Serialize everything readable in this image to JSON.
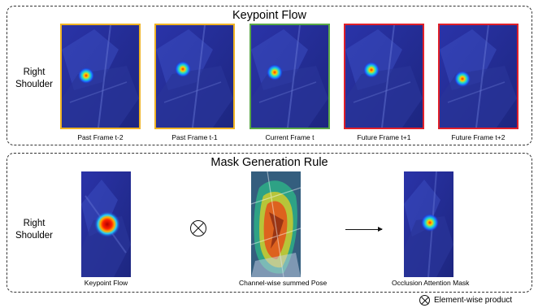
{
  "keypoint_flow": {
    "title": "Keypoint Flow",
    "row_label": "Right\nShoulder",
    "frames": [
      {
        "caption": "Past Frame t-2",
        "border_color": "#f0b323"
      },
      {
        "caption": "Past Frame t-1",
        "border_color": "#f0b323"
      },
      {
        "caption": "Current Frame t",
        "border_color": "#5aa846"
      },
      {
        "caption": "Future Frame t+1",
        "border_color": "#e0202a"
      },
      {
        "caption": "Future Frame t+2",
        "border_color": "#e0202a"
      }
    ]
  },
  "mask_generation": {
    "title": "Mask Generation Rule",
    "row_label": "Right\nShoulder",
    "images": [
      {
        "caption": "Keypoint Flow"
      },
      {
        "caption": "Channel-wise summed Pose"
      },
      {
        "caption": "Occlusion Attention Mask"
      }
    ]
  },
  "legend": {
    "symbol": "otimes-icon",
    "label": "Element-wise product"
  }
}
